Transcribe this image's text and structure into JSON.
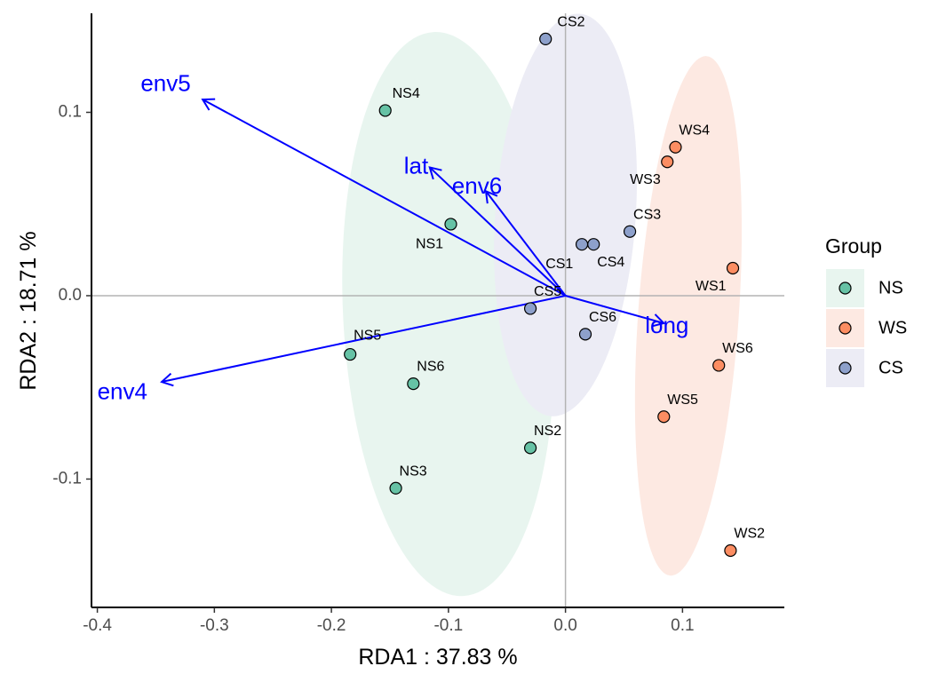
{
  "chart_data": {
    "type": "scatter",
    "xlabel": "RDA1 :  37.83 %",
    "ylabel": "RDA2 :  18.71 %",
    "xlim": [
      -0.405,
      0.187
    ],
    "ylim": [
      -0.17,
      0.154
    ],
    "xticks": [
      -0.4,
      -0.3,
      -0.2,
      -0.1,
      0.0,
      0.1
    ],
    "xtick_labels": [
      "-0.4",
      "-0.3",
      "-0.2",
      "-0.1",
      "0.0",
      "0.1"
    ],
    "yticks": [
      -0.1,
      0.0,
      0.1
    ],
    "ytick_labels": [
      "-0.1",
      "0.0",
      "0.1"
    ],
    "legend": {
      "title": "Group",
      "position": "right",
      "entries": [
        {
          "name": "NS",
          "color": "#66c2a5"
        },
        {
          "name": "WS",
          "color": "#fc8d62"
        },
        {
          "name": "CS",
          "color": "#8da0cb"
        }
      ]
    },
    "ellipses": [
      {
        "group": "NS",
        "cx": -0.1,
        "cy": -0.01,
        "rx": 0.09,
        "ry": 0.154,
        "angle": -3,
        "fill": "#e8f5ef"
      },
      {
        "group": "CS",
        "cx": 0.0,
        "cy": 0.044,
        "rx": 0.06,
        "ry": 0.11,
        "angle": 4,
        "fill": "#ececf5"
      },
      {
        "group": "WS",
        "cx": 0.105,
        "cy": -0.011,
        "rx": 0.043,
        "ry": 0.142,
        "angle": 4,
        "fill": "#fde9e2"
      }
    ],
    "points": [
      {
        "label": "NS4",
        "group": "NS",
        "x": -0.154,
        "y": 0.101,
        "lx": -0.148,
        "ly": 0.108
      },
      {
        "label": "NS1",
        "group": "NS",
        "x": -0.098,
        "y": 0.039,
        "lx": -0.128,
        "ly": 0.026
      },
      {
        "label": "NS5",
        "group": "NS",
        "x": -0.184,
        "y": -0.032,
        "lx": -0.181,
        "ly": -0.024
      },
      {
        "label": "NS6",
        "group": "NS",
        "x": -0.13,
        "y": -0.048,
        "lx": -0.127,
        "ly": -0.041
      },
      {
        "label": "NS2",
        "group": "NS",
        "x": -0.03,
        "y": -0.083,
        "lx": -0.027,
        "ly": -0.076
      },
      {
        "label": "NS3",
        "group": "NS",
        "x": -0.145,
        "y": -0.105,
        "lx": -0.142,
        "ly": -0.098
      },
      {
        "label": "CS2",
        "group": "CS",
        "x": -0.017,
        "y": 0.14,
        "lx": -0.007,
        "ly": 0.147
      },
      {
        "label": "CS3",
        "group": "CS",
        "x": 0.055,
        "y": 0.035,
        "lx": 0.058,
        "ly": 0.042
      },
      {
        "label": "CS1",
        "group": "CS",
        "x": 0.014,
        "y": 0.028,
        "lx": -0.017,
        "ly": 0.015
      },
      {
        "label": "CS4",
        "group": "CS",
        "x": 0.024,
        "y": 0.028,
        "lx": 0.027,
        "ly": 0.016
      },
      {
        "label": "CS5",
        "group": "CS",
        "x": -0.03,
        "y": -0.007,
        "lx": -0.027,
        "ly": 0.0
      },
      {
        "label": "CS6",
        "group": "CS",
        "x": 0.017,
        "y": -0.021,
        "lx": 0.02,
        "ly": -0.014
      },
      {
        "label": "WS4",
        "group": "WS",
        "x": 0.094,
        "y": 0.081,
        "lx": 0.097,
        "ly": 0.088
      },
      {
        "label": "WS3",
        "group": "WS",
        "x": 0.087,
        "y": 0.073,
        "lx": 0.055,
        "ly": 0.061
      },
      {
        "label": "WS1",
        "group": "WS",
        "x": 0.143,
        "y": 0.015,
        "lx": 0.111,
        "ly": 0.003
      },
      {
        "label": "WS6",
        "group": "WS",
        "x": 0.131,
        "y": -0.038,
        "lx": 0.134,
        "ly": -0.031
      },
      {
        "label": "WS5",
        "group": "WS",
        "x": 0.084,
        "y": -0.066,
        "lx": 0.087,
        "ly": -0.059
      },
      {
        "label": "WS2",
        "group": "WS",
        "x": 0.141,
        "y": -0.139,
        "lx": 0.144,
        "ly": -0.132
      }
    ],
    "arrows": [
      {
        "label": "env5",
        "x": -0.31,
        "y": 0.107,
        "lx": -0.363,
        "ly": 0.115
      },
      {
        "label": "lat",
        "x": -0.116,
        "y": 0.07,
        "lx": -0.138,
        "ly": 0.07
      },
      {
        "label": "env6",
        "x": -0.068,
        "y": 0.057,
        "lx": -0.097,
        "ly": 0.059
      },
      {
        "label": "env4",
        "x": -0.345,
        "y": -0.047,
        "lx": -0.4,
        "ly": -0.053
      },
      {
        "label": "long",
        "x": 0.084,
        "y": -0.015,
        "lx": 0.068,
        "ly": -0.017
      }
    ],
    "colors": {
      "arrow": "#0000ff",
      "zero_line": "#b3b3b3",
      "axis_line": "#000000",
      "point_border": "#000000"
    }
  }
}
